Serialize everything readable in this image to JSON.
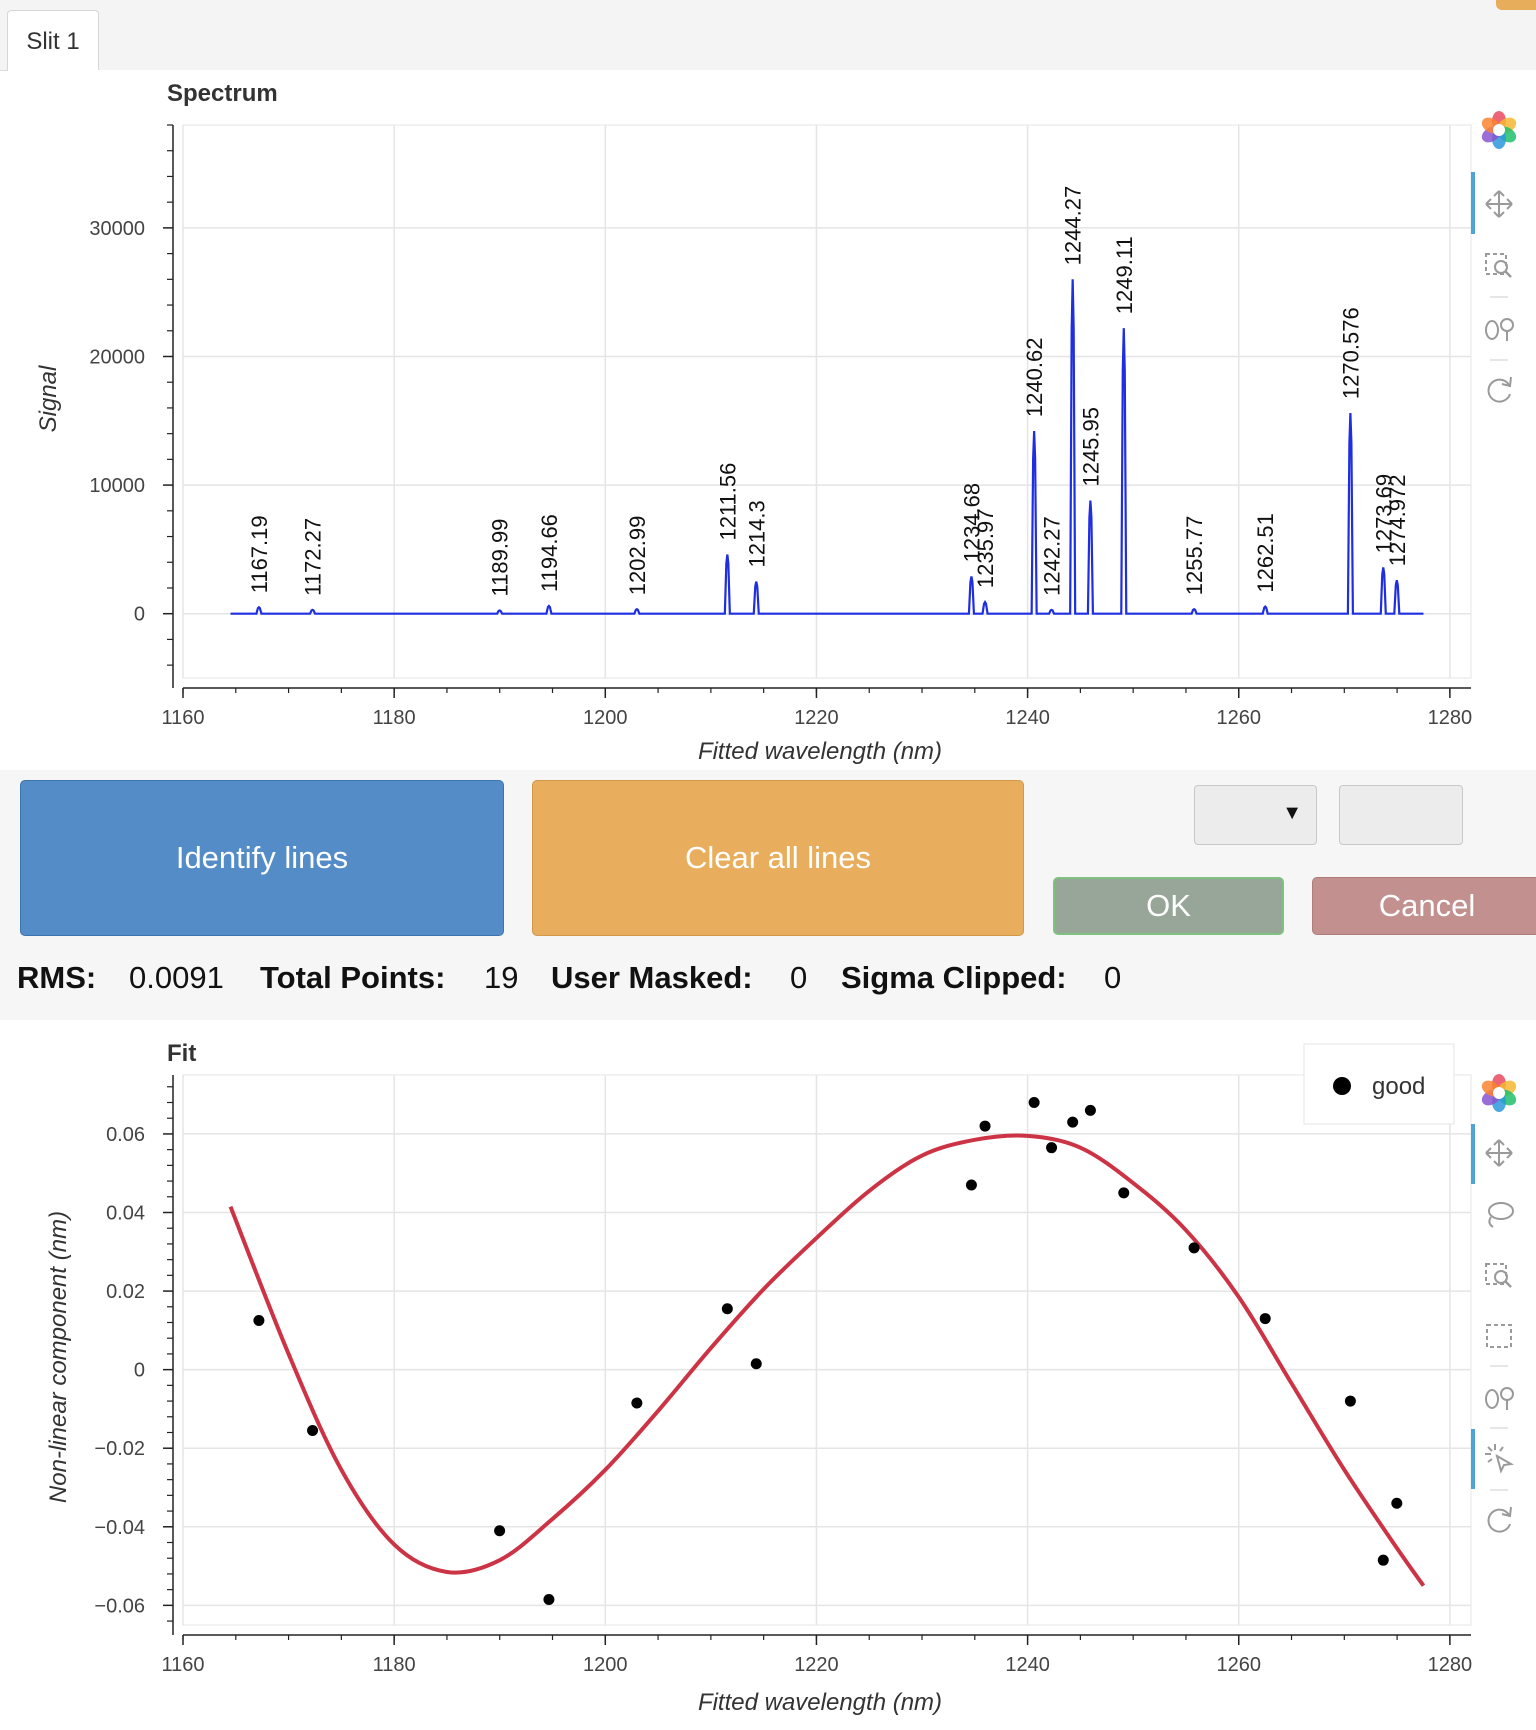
{
  "tab": {
    "label": "Slit 1"
  },
  "controls": {
    "identify_label": "Identify lines",
    "clear_label": "Clear all lines",
    "ok_label": "OK",
    "cancel_label": "Cancel",
    "select_value": "",
    "input_value": ""
  },
  "stats": {
    "rms_label": "RMS:",
    "rms_value": "0.0091",
    "total_label": "Total Points:",
    "total_value": "19",
    "masked_label": "User Masked:",
    "masked_value": "0",
    "clipped_label": "Sigma Clipped:",
    "clipped_value": "0"
  },
  "colors": {
    "spectrum_line": "#1f2ee0",
    "fit_curve": "#cc3344",
    "fit_points": "#000000",
    "identify_button": "#538cc6",
    "clear_button": "#e9ae5d",
    "ok_button": "#97a699",
    "cancel_button": "#c39090"
  },
  "spectrum_toolbar": [
    "bokeh-logo-icon",
    "pan-icon",
    "box-zoom-icon",
    "wheel-zoom-icon",
    "reset-icon"
  ],
  "fit_toolbar": [
    "bokeh-logo-icon",
    "pan-icon",
    "lasso-select-icon",
    "box-zoom-icon",
    "box-select-icon",
    "wheel-zoom-icon",
    "tap-icon",
    "reset-icon"
  ],
  "chart_data": [
    {
      "type": "line",
      "title": "Spectrum",
      "xlabel": "Fitted wavelength (nm)",
      "ylabel": "Signal",
      "xlim": [
        1160,
        1282
      ],
      "ylim": [
        -5000,
        38000
      ],
      "x_ticks": [
        "1160",
        "1180",
        "1200",
        "1220",
        "1240",
        "1260",
        "1280"
      ],
      "y_ticks": [
        "0",
        "10000",
        "20000",
        "30000"
      ],
      "y_tick_values": [
        0,
        10000,
        20000,
        30000
      ],
      "grid": true,
      "x_range": [
        1164.5,
        1277.5
      ],
      "baseline": 0,
      "peaks": [
        {
          "x": 1167.19,
          "y": 500,
          "label": "1167.19"
        },
        {
          "x": 1172.27,
          "y": 300,
          "label": "1172.27"
        },
        {
          "x": 1189.99,
          "y": 250,
          "label": "1189.99"
        },
        {
          "x": 1194.66,
          "y": 600,
          "label": "1194.66"
        },
        {
          "x": 1202.99,
          "y": 350,
          "label": "1202.99"
        },
        {
          "x": 1211.56,
          "y": 4600,
          "label": "1211.56"
        },
        {
          "x": 1214.3,
          "y": 2500,
          "label": "1214.3"
        },
        {
          "x": 1234.68,
          "y": 2900,
          "label": "1234.68"
        },
        {
          "x": 1235.97,
          "y": 900,
          "label": "1235.97"
        },
        {
          "x": 1240.62,
          "y": 14200,
          "label": "1240.62"
        },
        {
          "x": 1242.27,
          "y": 300,
          "label": "1242.27"
        },
        {
          "x": 1244.27,
          "y": 26000,
          "label": "1244.27"
        },
        {
          "x": 1245.95,
          "y": 8800,
          "label": "1245.95"
        },
        {
          "x": 1249.11,
          "y": 22200,
          "label": "1249.11"
        },
        {
          "x": 1255.77,
          "y": 350,
          "label": "1255.77"
        },
        {
          "x": 1262.51,
          "y": 550,
          "label": "1262.51"
        },
        {
          "x": 1270.576,
          "y": 15600,
          "label": "1270.576"
        },
        {
          "x": 1273.69,
          "y": 3600,
          "label": "1273.69"
        },
        {
          "x": 1274.972,
          "y": 2600,
          "label": "1274.972"
        }
      ]
    },
    {
      "type": "scatter",
      "title": "Fit",
      "xlabel": "Fitted wavelength (nm)",
      "ylabel": "Non-linear component (nm)",
      "xlim": [
        1160,
        1282
      ],
      "ylim": [
        -0.065,
        0.075
      ],
      "x_ticks": [
        "1160",
        "1180",
        "1200",
        "1220",
        "1240",
        "1260",
        "1280"
      ],
      "y_ticks": [
        "0.06",
        "0.04",
        "0.02",
        "0",
        "−0.02",
        "−0.04",
        "−0.06"
      ],
      "y_tick_values": [
        0.06,
        0.04,
        0.02,
        0,
        -0.02,
        -0.04,
        -0.06
      ],
      "grid": true,
      "legend": {
        "position": "top-right",
        "entries": [
          "good"
        ]
      },
      "series": [
        {
          "name": "good",
          "points": [
            [
              1167.19,
              0.0125
            ],
            [
              1172.27,
              -0.0155
            ],
            [
              1189.99,
              -0.041
            ],
            [
              1194.66,
              -0.0585
            ],
            [
              1202.99,
              -0.0085
            ],
            [
              1211.56,
              0.0155
            ],
            [
              1214.3,
              0.0015
            ],
            [
              1234.68,
              0.047
            ],
            [
              1235.97,
              0.062
            ],
            [
              1240.62,
              0.068
            ],
            [
              1242.27,
              0.0565
            ],
            [
              1244.27,
              0.063
            ],
            [
              1245.95,
              0.066
            ],
            [
              1249.11,
              0.045
            ],
            [
              1255.77,
              0.031
            ],
            [
              1262.51,
              0.013
            ],
            [
              1270.576,
              -0.008
            ],
            [
              1273.69,
              -0.0485
            ],
            [
              1274.972,
              -0.034
            ]
          ]
        }
      ],
      "fit_curve": {
        "x": [
          1164.5,
          1170,
          1175,
          1180,
          1185,
          1190,
          1195,
          1200,
          1205,
          1210,
          1215,
          1220,
          1225,
          1230,
          1235,
          1240,
          1245,
          1250,
          1255,
          1260,
          1265,
          1270,
          1275,
          1277.5
        ],
        "y": [
          0.0415,
          0.004,
          -0.0255,
          -0.0445,
          -0.0515,
          -0.0485,
          -0.038,
          -0.0255,
          -0.0105,
          0.0055,
          0.0205,
          0.0335,
          0.0455,
          0.0545,
          0.0585,
          0.0595,
          0.0565,
          0.0475,
          0.0355,
          0.0185,
          -0.0035,
          -0.0255,
          -0.0455,
          -0.055
        ]
      }
    }
  ]
}
